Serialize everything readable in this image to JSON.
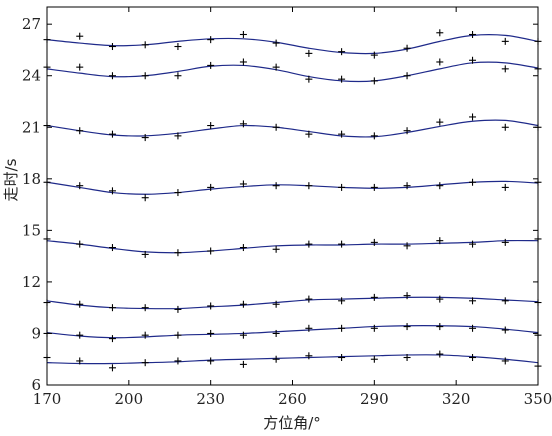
{
  "chart_data": {
    "type": "scatter",
    "xlabel": "方位角/°",
    "ylabel": "走时/s",
    "xlim": [
      170,
      350
    ],
    "ylim": [
      6,
      28
    ],
    "xticks": [
      170,
      200,
      230,
      260,
      290,
      320,
      350
    ],
    "yticks": [
      6,
      9,
      12,
      15,
      18,
      21,
      24,
      27
    ],
    "grid": false,
    "legend": "none",
    "line_color": "#1f2a8a",
    "marker_color": "#000000",
    "x": [
      170,
      182,
      194,
      206,
      218,
      230,
      242,
      254,
      266,
      278,
      290,
      302,
      314,
      326,
      338,
      350
    ],
    "series": [
      {
        "values": [
          26.1,
          26.3,
          25.7,
          25.8,
          25.7,
          26.1,
          26.4,
          25.9,
          25.3,
          25.4,
          25.2,
          25.6,
          26.5,
          26.4,
          26.0,
          26.0
        ],
        "fit": [
          26.1,
          25.9,
          25.75,
          25.8,
          26.0,
          26.15,
          26.15,
          25.95,
          25.6,
          25.35,
          25.3,
          25.55,
          26.0,
          26.35,
          26.35,
          26.0
        ]
      },
      {
        "values": [
          24.5,
          24.5,
          24.0,
          24.0,
          24.0,
          24.6,
          24.8,
          24.5,
          23.8,
          23.8,
          23.7,
          24.0,
          24.8,
          24.9,
          24.4,
          24.4
        ],
        "fit": [
          24.4,
          24.15,
          23.95,
          24.0,
          24.25,
          24.55,
          24.6,
          24.35,
          23.95,
          23.7,
          23.7,
          24.0,
          24.4,
          24.75,
          24.75,
          24.45
        ]
      },
      {
        "values": [
          21.1,
          20.8,
          20.6,
          20.4,
          20.5,
          21.1,
          21.2,
          21.0,
          20.6,
          20.6,
          20.5,
          20.8,
          21.3,
          21.6,
          21.0,
          21.0
        ],
        "fit": [
          21.1,
          20.8,
          20.55,
          20.5,
          20.65,
          20.9,
          21.1,
          21.0,
          20.75,
          20.5,
          20.45,
          20.7,
          21.05,
          21.35,
          21.4,
          21.1
        ]
      },
      {
        "values": [
          17.8,
          17.6,
          17.3,
          16.9,
          17.2,
          17.5,
          17.7,
          17.6,
          17.6,
          17.5,
          17.5,
          17.6,
          17.6,
          17.8,
          17.5,
          17.8
        ],
        "fit": [
          17.8,
          17.5,
          17.2,
          17.1,
          17.2,
          17.4,
          17.55,
          17.65,
          17.6,
          17.5,
          17.45,
          17.5,
          17.65,
          17.8,
          17.85,
          17.75
        ]
      },
      {
        "values": [
          14.5,
          14.2,
          14.0,
          13.6,
          13.7,
          13.8,
          14.0,
          13.9,
          14.2,
          14.2,
          14.3,
          14.1,
          14.4,
          14.2,
          14.3,
          14.5
        ],
        "fit": [
          14.4,
          14.2,
          13.95,
          13.75,
          13.7,
          13.8,
          13.95,
          14.1,
          14.15,
          14.15,
          14.2,
          14.2,
          14.25,
          14.3,
          14.4,
          14.4
        ]
      },
      {
        "values": [
          10.8,
          10.7,
          10.5,
          10.5,
          10.4,
          10.6,
          10.7,
          10.7,
          11.0,
          10.9,
          11.1,
          11.2,
          11.0,
          10.9,
          10.9,
          10.8
        ],
        "fit": [
          10.9,
          10.65,
          10.5,
          10.45,
          10.45,
          10.55,
          10.65,
          10.8,
          10.95,
          11.0,
          11.05,
          11.1,
          11.1,
          11.05,
          10.95,
          10.85
        ]
      },
      {
        "values": [
          9.0,
          8.9,
          8.7,
          8.9,
          8.9,
          9.0,
          8.9,
          9.0,
          9.3,
          9.3,
          9.3,
          9.4,
          9.4,
          9.3,
          9.2,
          8.9
        ],
        "fit": [
          9.05,
          8.85,
          8.75,
          8.8,
          8.9,
          8.95,
          9.0,
          9.1,
          9.2,
          9.3,
          9.4,
          9.45,
          9.45,
          9.4,
          9.25,
          9.05
        ]
      },
      {
        "values": [
          7.6,
          7.4,
          7.0,
          7.3,
          7.4,
          7.4,
          7.2,
          7.5,
          7.7,
          7.6,
          7.5,
          7.6,
          7.8,
          7.6,
          7.4,
          7.1
        ],
        "fit": [
          7.3,
          7.25,
          7.25,
          7.3,
          7.35,
          7.45,
          7.5,
          7.55,
          7.6,
          7.65,
          7.7,
          7.75,
          7.75,
          7.65,
          7.5,
          7.3
        ]
      }
    ]
  }
}
